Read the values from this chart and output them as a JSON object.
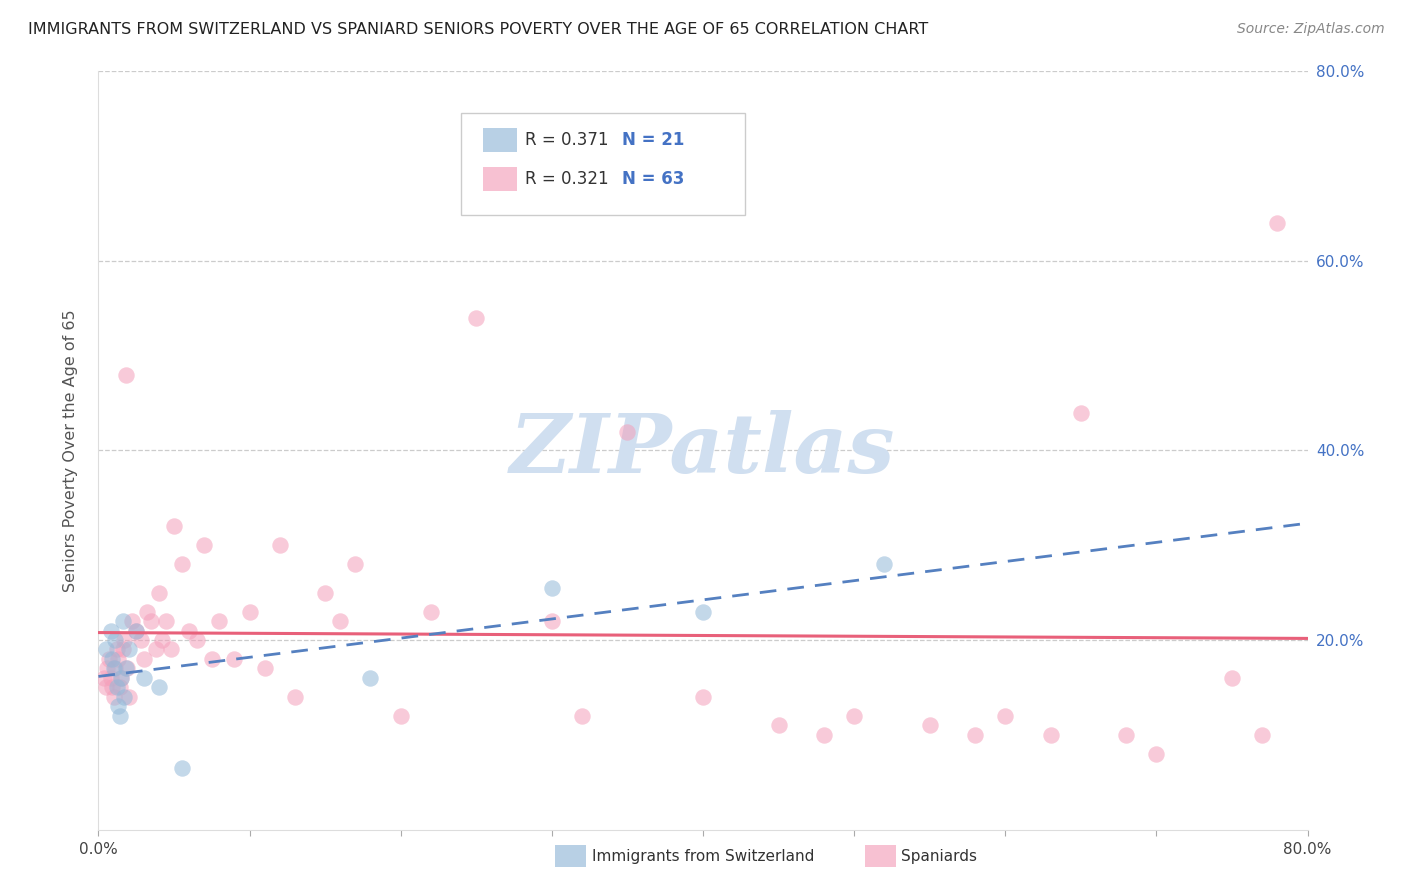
{
  "title": "IMMIGRANTS FROM SWITZERLAND VS SPANIARD SENIORS POVERTY OVER THE AGE OF 65 CORRELATION CHART",
  "source": "Source: ZipAtlas.com",
  "ylabel": "Seniors Poverty Over the Age of 65",
  "xlim": [
    0.0,
    0.8
  ],
  "ylim": [
    0.0,
    0.8
  ],
  "swiss_R": 0.371,
  "swiss_N": 21,
  "spain_R": 0.321,
  "spain_N": 63,
  "swiss_color": "#92b8d8",
  "spain_color": "#f4a0bb",
  "swiss_line_color": "#5580c0",
  "spain_line_color": "#e8607a",
  "watermark_color": "#d0dff0",
  "swiss_scatter_x": [
    0.005,
    0.008,
    0.009,
    0.01,
    0.011,
    0.012,
    0.013,
    0.014,
    0.015,
    0.016,
    0.017,
    0.018,
    0.02,
    0.025,
    0.03,
    0.04,
    0.055,
    0.18,
    0.3,
    0.4,
    0.52
  ],
  "swiss_scatter_y": [
    0.19,
    0.21,
    0.18,
    0.17,
    0.2,
    0.15,
    0.13,
    0.12,
    0.16,
    0.22,
    0.14,
    0.17,
    0.19,
    0.21,
    0.16,
    0.15,
    0.065,
    0.16,
    0.255,
    0.23,
    0.28
  ],
  "spain_scatter_x": [
    0.004,
    0.005,
    0.006,
    0.007,
    0.008,
    0.009,
    0.01,
    0.011,
    0.012,
    0.013,
    0.014,
    0.015,
    0.016,
    0.017,
    0.018,
    0.019,
    0.02,
    0.022,
    0.025,
    0.028,
    0.03,
    0.032,
    0.035,
    0.038,
    0.04,
    0.042,
    0.045,
    0.048,
    0.05,
    0.055,
    0.06,
    0.065,
    0.07,
    0.075,
    0.08,
    0.09,
    0.1,
    0.11,
    0.12,
    0.13,
    0.15,
    0.16,
    0.17,
    0.2,
    0.22,
    0.25,
    0.3,
    0.32,
    0.35,
    0.4,
    0.45,
    0.48,
    0.5,
    0.55,
    0.58,
    0.6,
    0.63,
    0.65,
    0.68,
    0.7,
    0.75,
    0.77,
    0.78
  ],
  "spain_scatter_y": [
    0.16,
    0.15,
    0.17,
    0.18,
    0.16,
    0.15,
    0.14,
    0.17,
    0.19,
    0.18,
    0.15,
    0.16,
    0.19,
    0.2,
    0.48,
    0.17,
    0.14,
    0.22,
    0.21,
    0.2,
    0.18,
    0.23,
    0.22,
    0.19,
    0.25,
    0.2,
    0.22,
    0.19,
    0.32,
    0.28,
    0.21,
    0.2,
    0.3,
    0.18,
    0.22,
    0.18,
    0.23,
    0.17,
    0.3,
    0.14,
    0.25,
    0.22,
    0.28,
    0.12,
    0.23,
    0.54,
    0.22,
    0.12,
    0.42,
    0.14,
    0.11,
    0.1,
    0.12,
    0.11,
    0.1,
    0.12,
    0.1,
    0.44,
    0.1,
    0.08,
    0.16,
    0.1,
    0.64
  ]
}
